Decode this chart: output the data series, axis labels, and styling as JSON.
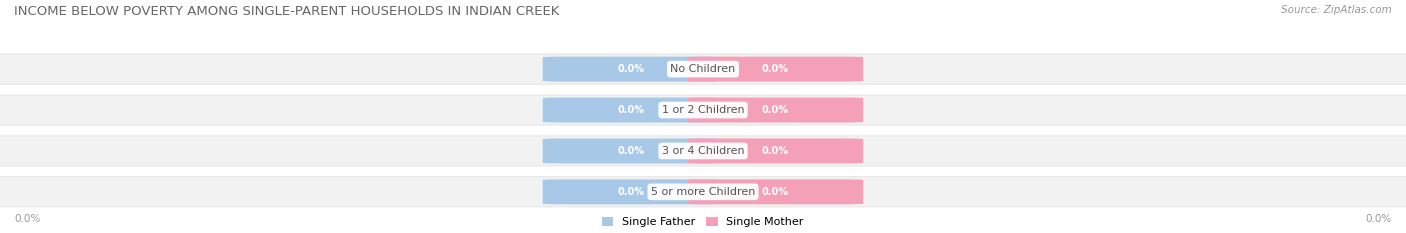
{
  "title": "INCOME BELOW POVERTY AMONG SINGLE-PARENT HOUSEHOLDS IN INDIAN CREEK",
  "source": "Source: ZipAtlas.com",
  "categories": [
    "No Children",
    "1 or 2 Children",
    "3 or 4 Children",
    "5 or more Children"
  ],
  "single_father_values": [
    0.0,
    0.0,
    0.0,
    0.0
  ],
  "single_mother_values": [
    0.0,
    0.0,
    0.0,
    0.0
  ],
  "father_color": "#a8c8e8",
  "mother_color": "#f4a0b8",
  "bar_bg_color": "#f2f2f2",
  "bar_bg_border_color": "#dddddd",
  "center_label_color": "#555555",
  "axis_label_left": "0.0%",
  "axis_label_right": "0.0%",
  "title_fontsize": 9.5,
  "source_fontsize": 7.5,
  "background_color": "#ffffff",
  "legend_father": "Single Father",
  "legend_mother": "Single Mother",
  "value_fontsize": 7.0,
  "category_fontsize": 8.0
}
